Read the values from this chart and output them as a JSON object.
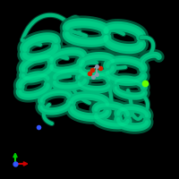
{
  "background_color": "#000000",
  "protein_color": "#00b87a",
  "protein_highlight": "#00e896",
  "protein_dark": "#006644",
  "protein_mid": "#009960",
  "ligand_red": "#cc2200",
  "ligand_gray": "#999999",
  "ligand_blue_gray": "#8899aa",
  "dot_green": "#66ff00",
  "dot_blue": "#3355ff",
  "axis_green": "#00cc00",
  "axis_red": "#cc0000",
  "axis_blue": "#3355ff",
  "figsize": [
    2.0,
    2.0
  ],
  "dpi": 100
}
